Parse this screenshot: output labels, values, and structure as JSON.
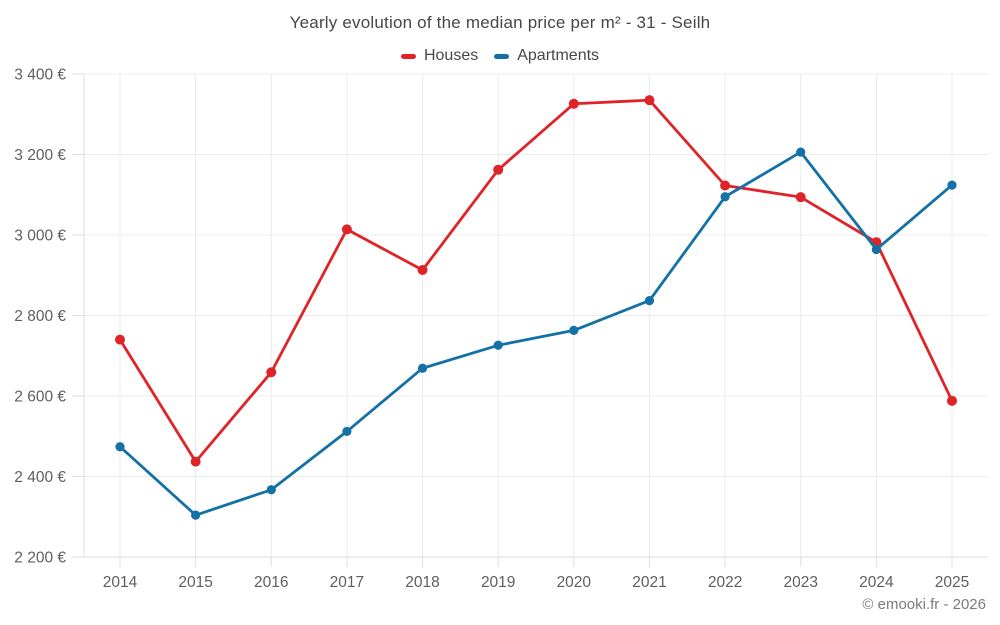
{
  "header": {
    "title": "Yearly evolution of the median price per m² - 31 - Seilh"
  },
  "footer": {
    "credit": "© emooki.fr - 2026"
  },
  "style": {
    "grid_color": "#ececec",
    "axis_color": "#dedede",
    "tick_label_color": "#5f5f5f",
    "title_color": "#474747",
    "houses_color": "#e02329",
    "apartments_color": "#1371a6"
  },
  "chart_data": {
    "type": "line",
    "title": "Yearly evolution of the median price per m² - 31 - Seilh",
    "x": [
      2014,
      2015,
      2016,
      2017,
      2018,
      2019,
      2020,
      2021,
      2022,
      2023,
      2024,
      2025
    ],
    "series": [
      {
        "name": "Houses",
        "color": "#e02329",
        "marker": "circle",
        "point_radius": 5,
        "values": [
          2740,
          2437,
          2659,
          3014,
          2913,
          3162,
          3326,
          3335,
          3123,
          3094,
          2982,
          2588
        ]
      },
      {
        "name": "Apartments",
        "color": "#1371a6",
        "marker": "circle",
        "point_radius": 4.6,
        "values": [
          2474,
          2304,
          2367,
          2512,
          2669,
          2726,
          2763,
          2837,
          3095,
          3206,
          2964,
          3124
        ]
      }
    ],
    "xlabel": "",
    "ylabel": "",
    "ylim": [
      2200,
      3400
    ],
    "ytick_step": 200,
    "ytick_labels": [
      "2 200 €",
      "2 400 €",
      "2 600 €",
      "2 800 €",
      "3 000 €",
      "3 200 €",
      "3 400 €"
    ],
    "currency": "€",
    "grid": true,
    "legend_position": "top"
  }
}
